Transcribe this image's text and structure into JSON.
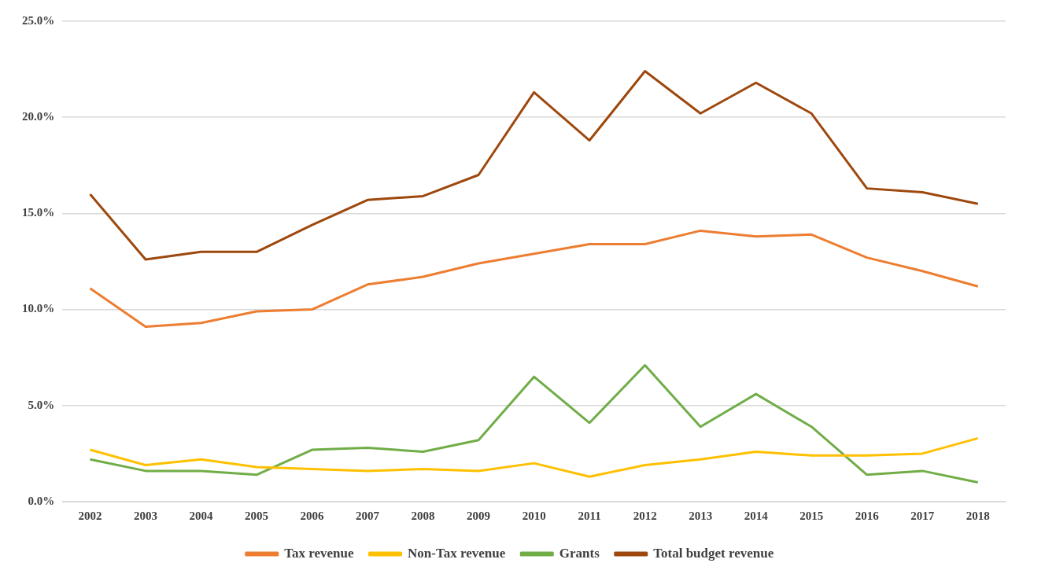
{
  "chart_data": {
    "type": "line",
    "categories": [
      "2002",
      "2003",
      "2004",
      "2005",
      "2006",
      "2007",
      "2008",
      "2009",
      "2010",
      "2011",
      "2012",
      "2013",
      "2014",
      "2015",
      "2016",
      "2017",
      "2018"
    ],
    "series": [
      {
        "name": "Tax revenue",
        "color": "#ed7d31",
        "values": [
          11.1,
          9.1,
          9.3,
          9.9,
          10.0,
          11.3,
          11.7,
          12.4,
          12.9,
          13.4,
          13.4,
          14.1,
          13.8,
          13.9,
          12.7,
          12.0,
          11.2
        ]
      },
      {
        "name": "Non-Tax revenue",
        "color": "#ffc000",
        "values": [
          2.7,
          1.9,
          2.2,
          1.8,
          1.7,
          1.6,
          1.7,
          1.6,
          2.0,
          1.3,
          1.9,
          2.2,
          2.6,
          2.4,
          2.4,
          2.5,
          3.3
        ]
      },
      {
        "name": "Grants",
        "color": "#70ad47",
        "values": [
          2.2,
          1.6,
          1.6,
          1.4,
          2.7,
          2.8,
          2.6,
          3.2,
          6.5,
          4.1,
          7.1,
          3.9,
          5.6,
          3.9,
          1.4,
          1.6,
          1.0
        ]
      },
      {
        "name": "Total budget revenue",
        "color": "#9e480e",
        "values": [
          16.0,
          12.6,
          13.0,
          13.0,
          14.4,
          15.7,
          15.9,
          17.0,
          21.3,
          18.8,
          22.4,
          20.2,
          21.8,
          20.2,
          16.3,
          16.1,
          15.5
        ]
      }
    ],
    "ylim": [
      0,
      25
    ],
    "yticks": [
      {
        "value": 0,
        "label": "0.0%"
      },
      {
        "value": 5,
        "label": "5.0%"
      },
      {
        "value": 10,
        "label": "10.0%"
      },
      {
        "value": 15,
        "label": "15.0%"
      },
      {
        "value": 20,
        "label": "20.0%"
      },
      {
        "value": 25,
        "label": "25.0%"
      }
    ],
    "grid": "y",
    "legend": "bottom",
    "marker": "none",
    "line_style": "solid"
  }
}
